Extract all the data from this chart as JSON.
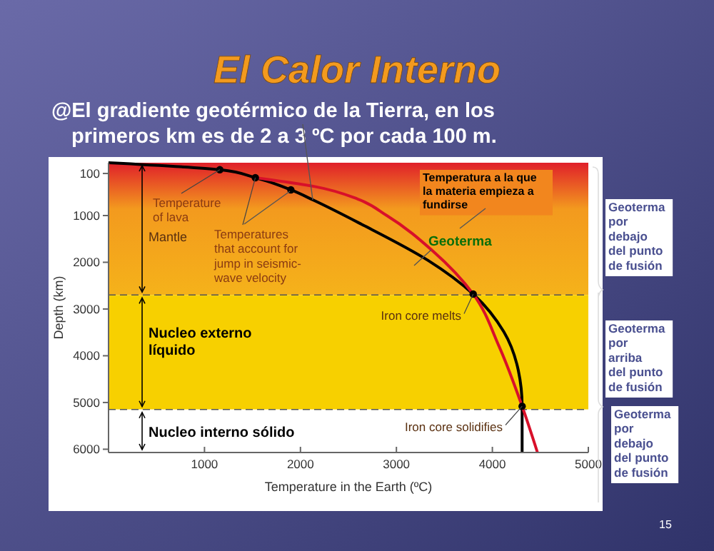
{
  "chart_data": {
    "type": "line",
    "title": "El Calor Interno",
    "subtitle": "@El gradiente geotérmico de la Tierra, en los primeros km es de 2 a 3 ºC por cada 100 m.",
    "xlabel": "Temperature in the Earth (ºC)",
    "ylabel": "Depth (km)",
    "xlim": [
      0,
      5000
    ],
    "xticks": [
      1000,
      2000,
      3000,
      4000,
      5000
    ],
    "ylim": [
      6070,
      -130
    ],
    "yticks": [
      100,
      1000,
      2000,
      3000,
      4000,
      5000,
      6000
    ],
    "series": [
      {
        "type": "line",
        "color": "#000000",
        "x": [
          0,
          1160,
          1530,
          1900,
          2145,
          2640,
          3330,
          3800,
          4120,
          4270,
          4310,
          4310
        ],
        "values": [
          -130,
          20,
          190,
          450,
          680,
          1190,
          1960,
          2680,
          3490,
          4310,
          5080,
          6070
        ]
      },
      {
        "type": "line",
        "color": "#d8102a",
        "x": [
          1530,
          2150,
          2600,
          2900,
          3380,
          3800,
          4070,
          4310,
          4470
        ],
        "values": [
          190,
          380,
          650,
          1000,
          1760,
          2680,
          3800,
          5080,
          6070
        ]
      },
      {
        "type": "scatter",
        "color": "#000000",
        "marker": "circle",
        "x": [
          1160,
          1530,
          1900,
          3800,
          4310
        ],
        "values": [
          20,
          190,
          450,
          2680,
          5080
        ]
      }
    ],
    "bands": [
      {
        "axis": "y",
        "from": -130,
        "to": 2700,
        "label": "Mantle",
        "color": "#f39a1e"
      },
      {
        "axis": "y",
        "from": 2700,
        "to": 5150,
        "label": "Nucleo externo líquido",
        "color": "#f7d000"
      },
      {
        "axis": "y",
        "from": 5150,
        "to": 6070,
        "label": "Nucleo interno sólido",
        "color": "#ffffff"
      }
    ],
    "ref_lines": [
      {
        "axis": "y",
        "value": 2700,
        "line_style": "dashed"
      },
      {
        "axis": "y",
        "value": 5150,
        "line_style": "dashed"
      }
    ],
    "annotations": [
      {
        "text": "Temperature of lava",
        "x": 1160,
        "y": 20
      },
      {
        "text": "Temperatures that account for jump in seismic-wave velocity",
        "x": 1530,
        "y": 190
      },
      {
        "text": "Iron core melts",
        "x": 3800,
        "y": 2680
      },
      {
        "text": "Iron core solidifies",
        "x": 4310,
        "y": 5080
      },
      "Temperatura a la que la materia empieza a fundirse",
      "Geoterma",
      "Geoterma por debajo del punto de fusión",
      "Geoterma por arriba del punto de fusión",
      "Geoterma por debajo del punto de fusión",
      "15"
    ]
  }
}
